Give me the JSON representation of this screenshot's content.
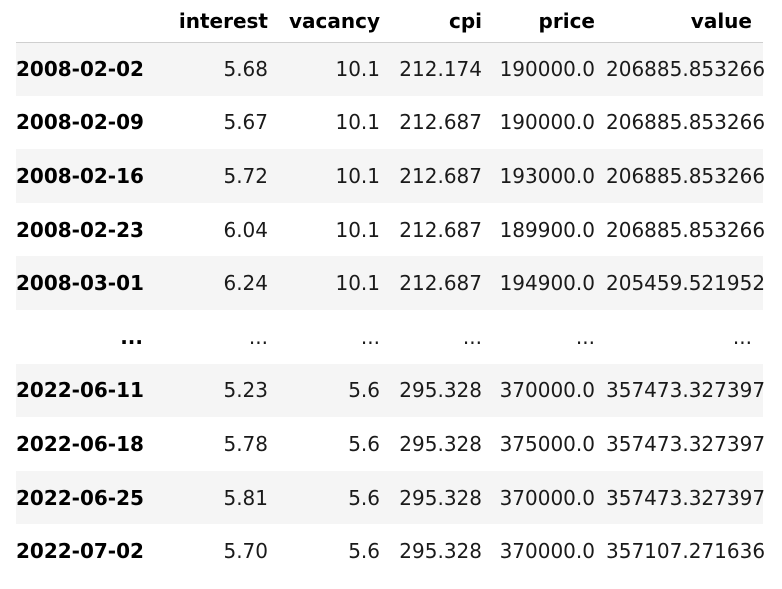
{
  "table": {
    "columns": [
      "",
      "interest",
      "vacancy",
      "cpi",
      "price",
      "value"
    ],
    "rows": [
      {
        "index": "2008-02-02",
        "interest": "5.68",
        "vacancy": "10.1",
        "cpi": "212.174",
        "price": "190000.0",
        "value": "206885.853266"
      },
      {
        "index": "2008-02-09",
        "interest": "5.67",
        "vacancy": "10.1",
        "cpi": "212.687",
        "price": "190000.0",
        "value": "206885.853266"
      },
      {
        "index": "2008-02-16",
        "interest": "5.72",
        "vacancy": "10.1",
        "cpi": "212.687",
        "price": "193000.0",
        "value": "206885.853266"
      },
      {
        "index": "2008-02-23",
        "interest": "6.04",
        "vacancy": "10.1",
        "cpi": "212.687",
        "price": "189900.0",
        "value": "206885.853266"
      },
      {
        "index": "2008-03-01",
        "interest": "6.24",
        "vacancy": "10.1",
        "cpi": "212.687",
        "price": "194900.0",
        "value": "205459.521952"
      },
      {
        "index": "...",
        "interest": "...",
        "vacancy": "...",
        "cpi": "...",
        "price": "...",
        "value": "..."
      },
      {
        "index": "2022-06-11",
        "interest": "5.23",
        "vacancy": "5.6",
        "cpi": "295.328",
        "price": "370000.0",
        "value": "357473.327397"
      },
      {
        "index": "2022-06-18",
        "interest": "5.78",
        "vacancy": "5.6",
        "cpi": "295.328",
        "price": "375000.0",
        "value": "357473.327397"
      },
      {
        "index": "2022-06-25",
        "interest": "5.81",
        "vacancy": "5.6",
        "cpi": "295.328",
        "price": "370000.0",
        "value": "357473.327397"
      },
      {
        "index": "2022-07-02",
        "interest": "5.70",
        "vacancy": "5.6",
        "cpi": "295.328",
        "price": "370000.0",
        "value": "357107.271636"
      }
    ]
  },
  "colors": {
    "stripe": "#f5f5f5",
    "header_rule": "#cfcfcf",
    "background": "#ffffff"
  }
}
